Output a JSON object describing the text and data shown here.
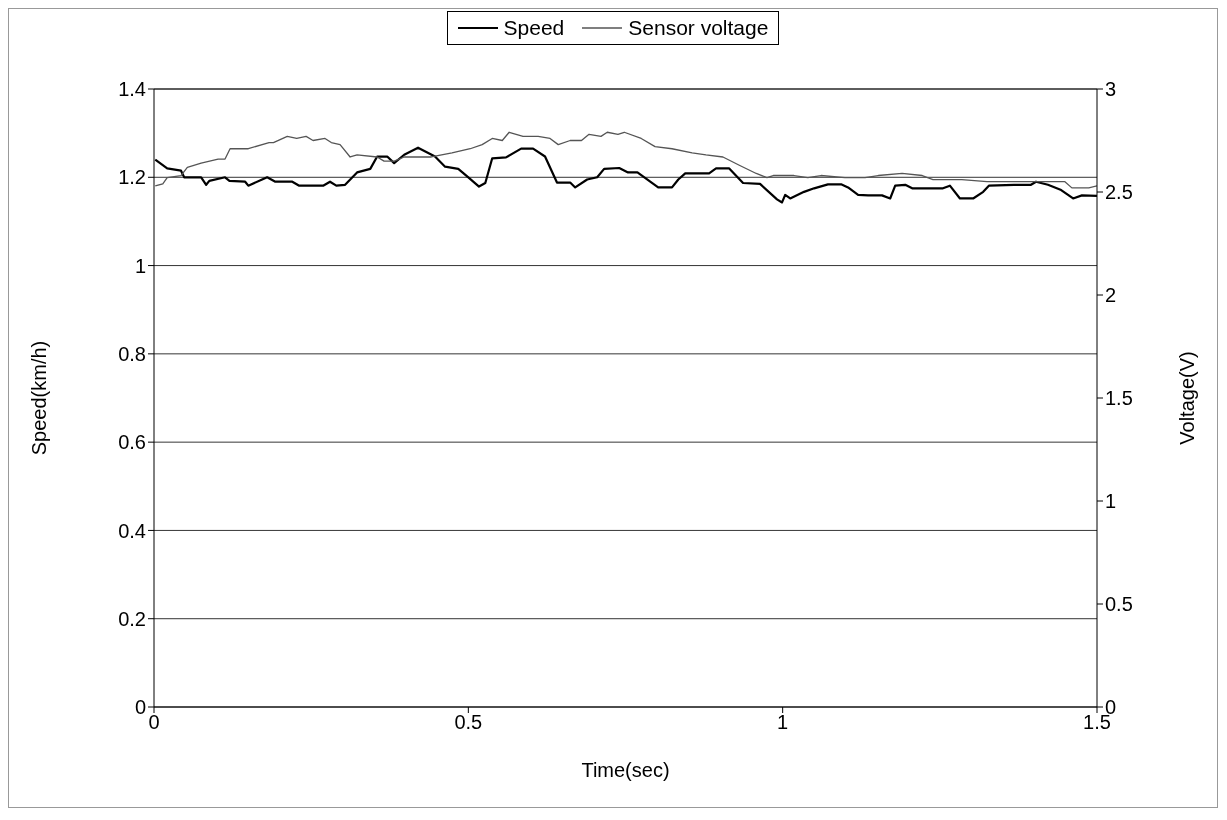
{
  "chart_data": {
    "type": "line",
    "xlabel": "Time(sec)",
    "ylabel": "Speed(km/h)",
    "y2label": "Voltage(V)",
    "xlim": [
      0,
      1.5
    ],
    "xticks": [
      0,
      0.5,
      1,
      1.5
    ],
    "ylim": [
      0,
      1.4
    ],
    "yticks": [
      0,
      0.2,
      0.4,
      0.6,
      0.8,
      1,
      1.2,
      1.4
    ],
    "y2lim": [
      0,
      3
    ],
    "y2ticks": [
      0,
      0.5,
      1,
      1.5,
      2,
      2.5,
      3
    ],
    "grid": "y",
    "legend": "top",
    "series": [
      {
        "name": "Speed",
        "color": "#000000",
        "x": [
          0.002,
          0.021,
          0.043,
          0.048,
          0.075,
          0.083,
          0.088,
          0.113,
          0.12,
          0.145,
          0.15,
          0.172,
          0.18,
          0.193,
          0.22,
          0.231,
          0.269,
          0.28,
          0.29,
          0.304,
          0.323,
          0.344,
          0.355,
          0.371,
          0.382,
          0.398,
          0.42,
          0.447,
          0.463,
          0.484,
          0.5,
          0.517,
          0.527,
          0.538,
          0.56,
          0.584,
          0.603,
          0.622,
          0.641,
          0.662,
          0.67,
          0.689,
          0.705,
          0.716,
          0.74,
          0.754,
          0.769,
          0.802,
          0.824,
          0.834,
          0.845,
          0.883,
          0.894,
          0.915,
          0.937,
          0.964,
          0.991,
          0.999,
          1.004,
          1.012,
          1.034,
          1.05,
          1.072,
          1.093,
          1.104,
          1.12,
          1.136,
          1.158,
          1.171,
          1.179,
          1.195,
          1.206,
          1.255,
          1.266,
          1.282,
          1.303,
          1.319,
          1.328,
          1.368,
          1.395,
          1.403,
          1.422,
          1.443,
          1.462,
          1.476,
          1.5
        ],
        "values": [
          1.24,
          1.22,
          1.215,
          1.2,
          1.2,
          1.183,
          1.192,
          1.2,
          1.192,
          1.19,
          1.181,
          1.195,
          1.2,
          1.19,
          1.19,
          1.181,
          1.181,
          1.19,
          1.181,
          1.183,
          1.211,
          1.219,
          1.247,
          1.247,
          1.232,
          1.251,
          1.267,
          1.247,
          1.224,
          1.219,
          1.2,
          1.179,
          1.187,
          1.243,
          1.245,
          1.265,
          1.265,
          1.247,
          1.188,
          1.188,
          1.177,
          1.195,
          1.2,
          1.219,
          1.221,
          1.211,
          1.211,
          1.177,
          1.177,
          1.195,
          1.209,
          1.209,
          1.22,
          1.22,
          1.187,
          1.185,
          1.15,
          1.143,
          1.16,
          1.152,
          1.167,
          1.175,
          1.184,
          1.184,
          1.177,
          1.16,
          1.159,
          1.159,
          1.152,
          1.181,
          1.183,
          1.175,
          1.175,
          1.181,
          1.152,
          1.152,
          1.167,
          1.181,
          1.183,
          1.183,
          1.19,
          1.183,
          1.171,
          1.152,
          1.159,
          1.158
        ]
      },
      {
        "name": "Sensor voltage",
        "color": "#555555",
        "axis": "y2",
        "x": [
          0.002,
          0.014,
          0.021,
          0.043,
          0.053,
          0.075,
          0.102,
          0.113,
          0.121,
          0.15,
          0.183,
          0.19,
          0.212,
          0.227,
          0.242,
          0.253,
          0.272,
          0.282,
          0.296,
          0.312,
          0.323,
          0.355,
          0.366,
          0.382,
          0.398,
          0.441,
          0.474,
          0.503,
          0.522,
          0.538,
          0.554,
          0.565,
          0.587,
          0.611,
          0.63,
          0.643,
          0.662,
          0.68,
          0.692,
          0.711,
          0.721,
          0.738,
          0.748,
          0.775,
          0.797,
          0.824,
          0.856,
          0.878,
          0.905,
          0.931,
          0.958,
          0.975,
          0.985,
          0.998,
          1.018,
          1.04,
          1.061,
          1.099,
          1.115,
          1.131,
          1.152,
          1.19,
          1.222,
          1.239,
          1.285,
          1.325,
          1.368,
          1.4,
          1.422,
          1.449,
          1.46,
          1.487,
          1.5
        ],
        "values": [
          2.53,
          2.54,
          2.57,
          2.58,
          2.62,
          2.64,
          2.66,
          2.66,
          2.71,
          2.71,
          2.74,
          2.74,
          2.77,
          2.76,
          2.77,
          2.75,
          2.76,
          2.74,
          2.73,
          2.67,
          2.68,
          2.67,
          2.65,
          2.65,
          2.67,
          2.67,
          2.69,
          2.71,
          2.73,
          2.76,
          2.75,
          2.79,
          2.77,
          2.77,
          2.76,
          2.73,
          2.75,
          2.75,
          2.78,
          2.77,
          2.79,
          2.78,
          2.79,
          2.76,
          2.72,
          2.71,
          2.69,
          2.68,
          2.67,
          2.63,
          2.59,
          2.57,
          2.58,
          2.58,
          2.58,
          2.57,
          2.58,
          2.57,
          2.57,
          2.57,
          2.58,
          2.59,
          2.58,
          2.56,
          2.56,
          2.55,
          2.55,
          2.55,
          2.55,
          2.55,
          2.52,
          2.52,
          2.53
        ]
      }
    ]
  }
}
